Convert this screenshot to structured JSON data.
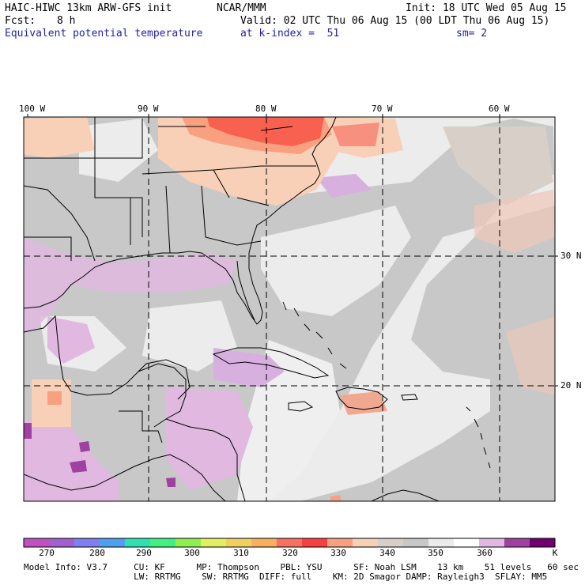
{
  "header": {
    "model_title": "HAIC-HIWC 13km ARW-GFS init",
    "org": "NCAR/MMM",
    "init": "Init: 18 UTC Wed 05 Aug 15",
    "fcst_label": "Fcst:",
    "fcst_value": "8 h",
    "valid": "Valid: 02 UTC Thu 06 Aug 15 (00 LDT Thu 06 Aug 15)",
    "field": "Equivalent potential temperature",
    "level": "at k-index =  51",
    "smoothing": "sm= 2"
  },
  "axes": {
    "lon_labels": [
      "100 W",
      "90 W",
      "80 W",
      "70 W",
      "60 W"
    ],
    "lat_labels": [
      "30 N",
      "20 N"
    ]
  },
  "colorbar": {
    "unit": "K",
    "labels": [
      "270",
      "280",
      "290",
      "300",
      "310",
      "320",
      "330",
      "340",
      "350",
      "360"
    ],
    "colors": [
      "#c050c0",
      "#a060d0",
      "#7f7fef",
      "#4f9fef",
      "#30e0b0",
      "#40f080",
      "#90ef50",
      "#e0f060",
      "#f0d060",
      "#f8b060",
      "#f87060",
      "#f84040",
      "#f8a080",
      "#f8d0b8",
      "#d8d0c8",
      "#c8c8c8",
      "#ececec",
      "#ffffff",
      "#e0b8e0",
      "#a040a0",
      "#700070"
    ]
  },
  "model_info": {
    "line1": "Model Info: V3.7     CU: KF      MP: Thompson    PBL: YSU      SF: Noah LSM    13 km    51 levels   60 sec",
    "line2": "                     LW: RRTMG    SW: RRTMG  DIFF: full    KM: 2D Smagor DAMP: Rayleigh3  SFLAY: MM5"
  },
  "colors": {
    "background": "#ffffff",
    "ocean_gray": "#c8c8c8",
    "light_gray": "#ececec",
    "lavender": "#e0b8e0",
    "purple": "#c090d8",
    "peach": "#f8d0b8",
    "salmon": "#f8a080",
    "red": "#f86050",
    "header_blue": "#2222aa"
  }
}
